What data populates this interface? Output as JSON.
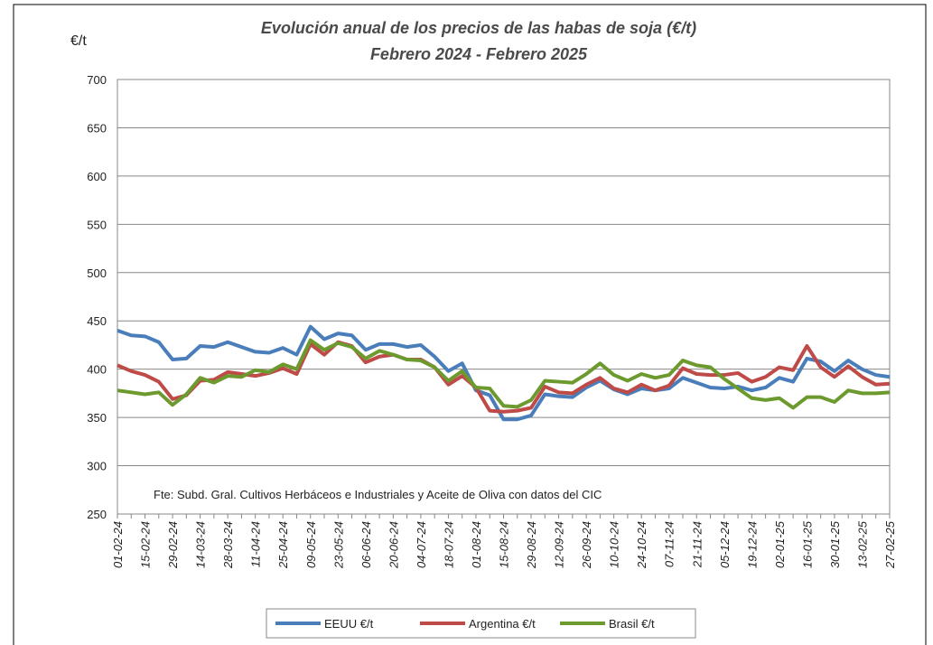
{
  "chart_data": {
    "type": "line",
    "title": "Evolución anual de los precios de las habas de soja (€/t)",
    "subtitle": "Febrero 2024 - Febrero 2025",
    "y_label": "€/t",
    "annotation": "Fte: Subd. Gral. Cultivos Herbáceos e Industriales y Aceite de Oliva con datos del CIC",
    "categories": [
      "01-02-24",
      null,
      "15-02-24",
      null,
      "29-02-24",
      null,
      "14-03-24",
      null,
      "28-03-24",
      null,
      "11-04-24",
      null,
      "25-04-24",
      null,
      "09-05-24",
      null,
      "23-05-24",
      null,
      "06-06-24",
      null,
      "20-06-24",
      null,
      "04-07-24",
      null,
      "18-07-24",
      null,
      "01-08-24",
      null,
      "15-08-24",
      null,
      "29-08-24",
      null,
      "12-09-24",
      null,
      "26-09-24",
      null,
      "10-10-24",
      null,
      "24-10-24",
      null,
      "07-11-24",
      null,
      "21-11-24",
      null,
      "05-12-24",
      null,
      "19-12-24",
      null,
      "02-01-25",
      null,
      "16-01-25",
      null,
      "30-01-25",
      null,
      "13-02-25",
      null,
      "27-02-25"
    ],
    "series": [
      {
        "name": "EEUU €/t",
        "color": "#4a7ebb",
        "values": [
          440,
          435,
          434,
          428,
          410,
          411,
          424,
          423,
          428,
          423,
          418,
          417,
          422,
          415,
          444,
          431,
          437,
          435,
          420,
          426,
          426,
          423,
          425,
          413,
          398,
          406,
          378,
          373,
          348,
          348,
          352,
          374,
          372,
          371,
          381,
          388,
          379,
          374,
          380,
          378,
          380,
          391,
          386,
          381,
          380,
          382,
          378,
          381,
          391,
          387,
          411,
          408,
          398,
          409,
          400,
          394,
          392
        ]
      },
      {
        "name": "Argentina €/t",
        "color": "#be4b48",
        "values": [
          404,
          398,
          394,
          387,
          369,
          373,
          388,
          389,
          397,
          395,
          393,
          396,
          401,
          395,
          426,
          415,
          428,
          424,
          407,
          413,
          415,
          410,
          410,
          402,
          384,
          393,
          381,
          357,
          356,
          357,
          360,
          382,
          376,
          375,
          384,
          391,
          380,
          376,
          384,
          378,
          383,
          401,
          395,
          394,
          394,
          396,
          387,
          392,
          402,
          399,
          424,
          402,
          392,
          403,
          392,
          384,
          385
        ]
      },
      {
        "name": "Brasil €/t",
        "color": "#6d9a2e",
        "values": [
          378,
          376,
          374,
          376,
          363,
          374,
          391,
          386,
          393,
          392,
          399,
          397,
          405,
          400,
          430,
          420,
          427,
          423,
          411,
          419,
          415,
          410,
          409,
          402,
          388,
          398,
          381,
          380,
          362,
          361,
          368,
          388,
          387,
          386,
          395,
          406,
          394,
          388,
          395,
          391,
          394,
          409,
          404,
          402,
          390,
          380,
          370,
          368,
          370,
          360,
          371,
          371,
          366,
          378,
          375,
          375,
          376
        ]
      }
    ],
    "ylim": [
      250,
      700
    ],
    "yticks": [
      250,
      300,
      350,
      400,
      450,
      500,
      550,
      600,
      650,
      700
    ],
    "grid": true,
    "legend": "bottom"
  }
}
